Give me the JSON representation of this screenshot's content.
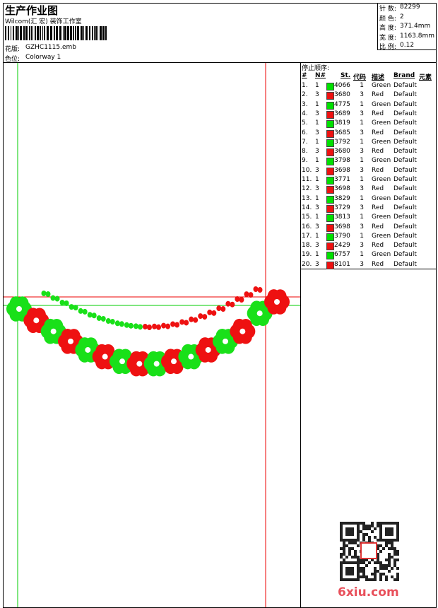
{
  "header": {
    "title": "生产作业图",
    "subtitle": "Wilcom(汇 宏) 装饰工作室",
    "design_label": "花版:",
    "design": "GZHC1115.emb",
    "colorway_label": "色位:",
    "colorway": "Colorway 1"
  },
  "info": [
    {
      "label": "针 数:",
      "value": "82299"
    },
    {
      "label": "颜 色:",
      "value": "2"
    },
    {
      "label": "高 度:",
      "value": "371.4mm"
    },
    {
      "label": "宽 度:",
      "value": "1163.8mm"
    },
    {
      "label": "比 例:",
      "value": "0.12"
    }
  ],
  "stop_sequence": {
    "title": "停止顺序:",
    "columns": [
      "#",
      "N#",
      "St.",
      "代码",
      "描述",
      "Brand",
      "元素"
    ],
    "rows": [
      {
        "n": "1.",
        "stop": "1",
        "color": "#00e000",
        "stitches": "4066",
        "code": "1",
        "desc": "Green",
        "brand": "Default"
      },
      {
        "n": "2.",
        "stop": "3",
        "color": "#ee1111",
        "stitches": "3680",
        "code": "3",
        "desc": "Red",
        "brand": "Default"
      },
      {
        "n": "3.",
        "stop": "1",
        "color": "#00e000",
        "stitches": "4775",
        "code": "1",
        "desc": "Green",
        "brand": "Default"
      },
      {
        "n": "4.",
        "stop": "3",
        "color": "#ee1111",
        "stitches": "3689",
        "code": "3",
        "desc": "Red",
        "brand": "Default"
      },
      {
        "n": "5.",
        "stop": "1",
        "color": "#00e000",
        "stitches": "3819",
        "code": "1",
        "desc": "Green",
        "brand": "Default"
      },
      {
        "n": "6.",
        "stop": "3",
        "color": "#ee1111",
        "stitches": "3685",
        "code": "3",
        "desc": "Red",
        "brand": "Default"
      },
      {
        "n": "7.",
        "stop": "1",
        "color": "#00e000",
        "stitches": "3792",
        "code": "1",
        "desc": "Green",
        "brand": "Default"
      },
      {
        "n": "8.",
        "stop": "3",
        "color": "#ee1111",
        "stitches": "3680",
        "code": "3",
        "desc": "Red",
        "brand": "Default"
      },
      {
        "n": "9.",
        "stop": "1",
        "color": "#00e000",
        "stitches": "3798",
        "code": "1",
        "desc": "Green",
        "brand": "Default"
      },
      {
        "n": "10.",
        "stop": "3",
        "color": "#ee1111",
        "stitches": "3698",
        "code": "3",
        "desc": "Red",
        "brand": "Default"
      },
      {
        "n": "11.",
        "stop": "1",
        "color": "#00e000",
        "stitches": "3771",
        "code": "1",
        "desc": "Green",
        "brand": "Default"
      },
      {
        "n": "12.",
        "stop": "3",
        "color": "#ee1111",
        "stitches": "3698",
        "code": "3",
        "desc": "Red",
        "brand": "Default"
      },
      {
        "n": "13.",
        "stop": "1",
        "color": "#00e000",
        "stitches": "3829",
        "code": "1",
        "desc": "Green",
        "brand": "Default"
      },
      {
        "n": "14.",
        "stop": "3",
        "color": "#ee1111",
        "stitches": "3729",
        "code": "3",
        "desc": "Red",
        "brand": "Default"
      },
      {
        "n": "15.",
        "stop": "1",
        "color": "#00e000",
        "stitches": "3813",
        "code": "1",
        "desc": "Green",
        "brand": "Default"
      },
      {
        "n": "16.",
        "stop": "3",
        "color": "#ee1111",
        "stitches": "3698",
        "code": "3",
        "desc": "Red",
        "brand": "Default"
      },
      {
        "n": "17.",
        "stop": "1",
        "color": "#00e000",
        "stitches": "3790",
        "code": "1",
        "desc": "Green",
        "brand": "Default"
      },
      {
        "n": "18.",
        "stop": "3",
        "color": "#ee1111",
        "stitches": "2429",
        "code": "3",
        "desc": "Red",
        "brand": "Default"
      },
      {
        "n": "19.",
        "stop": "1",
        "color": "#00e000",
        "stitches": "6757",
        "code": "1",
        "desc": "Green",
        "brand": "Default"
      },
      {
        "n": "20.",
        "stop": "3",
        "color": "#ee1111",
        "stitches": "8101",
        "code": "3",
        "desc": "Red",
        "brand": "Default"
      }
    ]
  },
  "watermark": "6xiu.com"
}
